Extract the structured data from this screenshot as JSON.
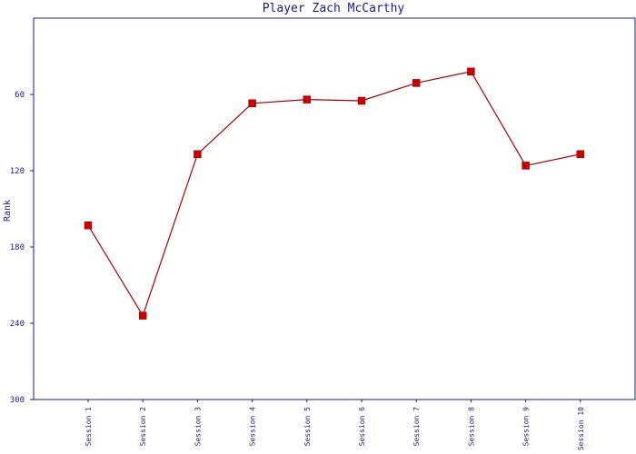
{
  "chart_data": {
    "type": "line",
    "title": "Player Zach McCarthy",
    "xlabel": "",
    "ylabel": "Rank",
    "categories": [
      "Session 1",
      "Session 2",
      "Session 3",
      "Session 4",
      "Session 5",
      "Session 6",
      "Session 7",
      "Session 8",
      "Session 9",
      "Session 10"
    ],
    "series": [
      {
        "values": [
          163,
          234,
          107,
          67,
          64,
          65,
          51,
          42,
          116,
          107
        ]
      }
    ],
    "ylim": [
      0,
      300
    ],
    "y_inverted": true,
    "yticks": [
      60,
      120,
      180,
      240,
      300
    ],
    "grid": false,
    "colors": {
      "line": "#aa0000",
      "marker": "#cc0000",
      "axis": "#1a1a8c",
      "text": "#1a1a8c"
    }
  }
}
